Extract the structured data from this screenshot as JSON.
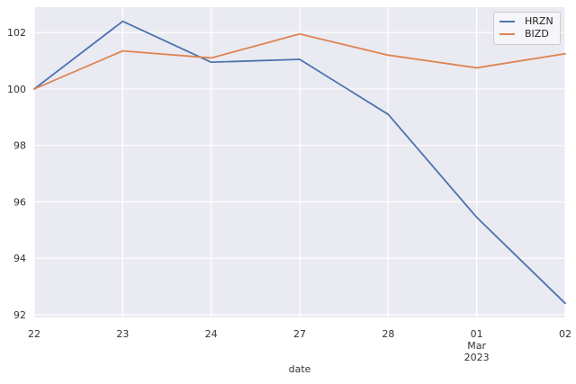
{
  "figure": {
    "background": "#ffffff",
    "plot_background": "#eaeaf2",
    "grid_color": "#ffffff",
    "text_color": "#333333"
  },
  "chart_data": {
    "type": "line",
    "title": "",
    "xlabel": "date",
    "ylabel": "",
    "grid": true,
    "legend_position": "upper right",
    "categories": [
      "22",
      "23",
      "24",
      "27",
      "28",
      "01\nMar\n2023",
      "02"
    ],
    "yticks": [
      92,
      94,
      96,
      98,
      100,
      102
    ],
    "ylim": [
      91.9,
      102.9
    ],
    "series": [
      {
        "name": "HRZN",
        "color": "#4c72b0",
        "values": [
          100.0,
          102.4,
          100.95,
          101.05,
          99.1,
          95.45,
          92.4
        ]
      },
      {
        "name": "BIZD",
        "color": "#dd8452",
        "values": [
          100.0,
          101.35,
          101.1,
          101.95,
          101.2,
          100.75,
          101.25
        ]
      }
    ]
  }
}
